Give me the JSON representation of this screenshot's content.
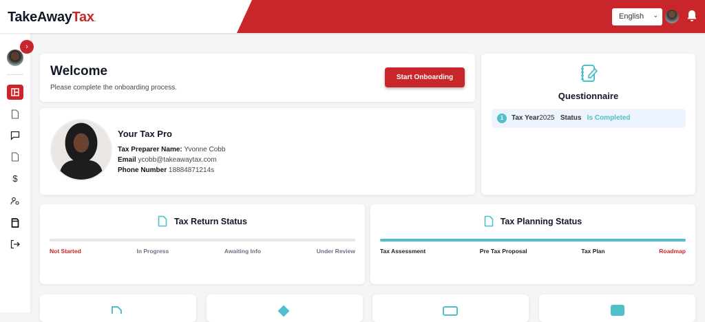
{
  "header": {
    "logo_main": "TakeAway",
    "logo_accent": "Tax",
    "language": "English",
    "brand_color": "#c8262b"
  },
  "sidebar": {
    "items": [
      {
        "name": "dashboard",
        "icon": "layout-icon",
        "active": true
      },
      {
        "name": "documents",
        "icon": "file-icon"
      },
      {
        "name": "messages",
        "icon": "chat-icon"
      },
      {
        "name": "forms",
        "icon": "file-icon"
      },
      {
        "name": "payments",
        "icon": "dollar-icon"
      },
      {
        "name": "account-settings",
        "icon": "user-gear-icon"
      },
      {
        "name": "returns",
        "icon": "document-filled-icon"
      },
      {
        "name": "logout",
        "icon": "logout-icon"
      }
    ]
  },
  "welcome": {
    "title": "Welcome",
    "subtitle": "Please complete the onboarding process.",
    "button": "Start Onboarding"
  },
  "tax_pro": {
    "title": "Your Tax Pro",
    "name_label": "Tax Preparer Name:",
    "name": "Yvonne Cobb",
    "email_label": "Email",
    "email": "ycobb@takeawaytax.com",
    "phone_label": "Phone Number",
    "phone": "18884871214s"
  },
  "questionnaire": {
    "title": "Questionnaire",
    "rows": [
      {
        "num": "1",
        "year_label": "Tax Year",
        "year": "2025",
        "status_label": "Status",
        "status": "Is Completed"
      }
    ]
  },
  "tax_return": {
    "title": "Tax Return Status",
    "progress": 0,
    "steps": [
      "Not Started",
      "In Progress",
      "Awaiting Info",
      "Under Review"
    ],
    "current": "Not Started"
  },
  "tax_planning": {
    "title": "Tax Planning Status",
    "progress": 100,
    "steps": [
      "Tax Assessment",
      "Pre Tax Proposal",
      "Tax Plan",
      "Roadmap"
    ],
    "current": "Roadmap"
  },
  "accent_color": "#4fbfc9"
}
